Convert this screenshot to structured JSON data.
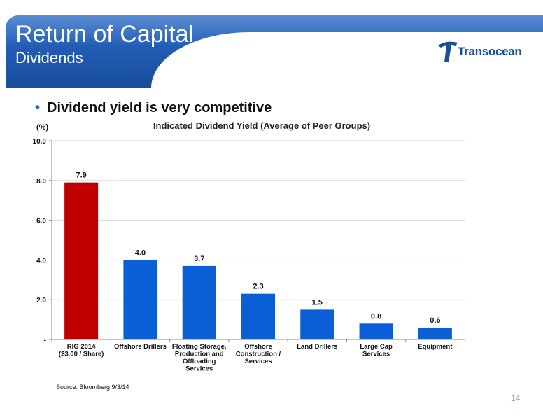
{
  "slide": {
    "title": "Return of Capital",
    "subtitle": "Dividends",
    "logo_text": "Transocean",
    "bullet": "Dividend yield is very competitive",
    "source": "Source:  Bloomberg 9/3/14",
    "page_number": "14"
  },
  "colors": {
    "banner": "#1f59b0",
    "highlight_bar": "#c00000",
    "bar": "#0b5fd6"
  },
  "chart_data": {
    "type": "bar",
    "title": "Indicated Dividend Yield (Average of Peer Groups)",
    "ylabel": "(%)",
    "ylim": [
      0,
      10
    ],
    "yticks": [
      {
        "value": 0,
        "label": "-"
      },
      {
        "value": 2,
        "label": "2.0"
      },
      {
        "value": 4,
        "label": "4.0"
      },
      {
        "value": 6,
        "label": "6.0"
      },
      {
        "value": 8,
        "label": "8.0"
      },
      {
        "value": 10,
        "label": "10.0"
      }
    ],
    "grid": true,
    "categories": [
      [
        "RIG 2014",
        "($3.00 / Share)"
      ],
      [
        "Offshore Drillers"
      ],
      [
        "Floating Storage,",
        "Production and",
        "Offloading",
        "Services"
      ],
      [
        "Offshore",
        "Construction /",
        "Services"
      ],
      [
        "Land Drillers"
      ],
      [
        "Large Cap",
        "Services"
      ],
      [
        "Equipment"
      ]
    ],
    "values": [
      7.9,
      4.0,
      3.7,
      2.3,
      1.5,
      0.8,
      0.6
    ],
    "data_labels": [
      "7.9",
      "4.0",
      "3.7",
      "2.3",
      "1.5",
      "0.8",
      "0.6"
    ],
    "highlight_index": 0
  }
}
